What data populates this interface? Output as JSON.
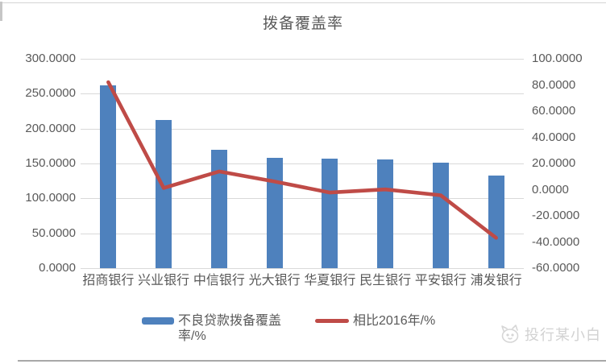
{
  "page": {
    "watermark_text": "投行某小白"
  },
  "chart_data": {
    "type": "bar",
    "subtype": "bar+line combo",
    "title": "拨备覆盖率",
    "categories": [
      "招商银行",
      "兴业银行",
      "中信银行",
      "光大银行",
      "华夏银行",
      "民生银行",
      "平安银行",
      "浦发银行"
    ],
    "series": [
      {
        "name": "不良贷款拨备覆盖率/%",
        "type": "bar",
        "axis": "left",
        "color": "#4e81bd",
        "values": [
          262.1,
          211.8,
          169.4,
          158.2,
          156.5,
          155.6,
          151.1,
          132.4
        ]
      },
      {
        "name": "相比2016年/%",
        "type": "line",
        "axis": "right",
        "color": "#bf4b47",
        "values": [
          82.1,
          1.3,
          13.9,
          6.2,
          -2.2,
          0.2,
          -4.3,
          -36.8
        ]
      }
    ],
    "left_axis": {
      "min": 0,
      "max": 300,
      "ticks": [
        "300.0000",
        "250.0000",
        "200.0000",
        "150.0000",
        "100.0000",
        "50.0000",
        "0.0000"
      ]
    },
    "right_axis": {
      "min": -60,
      "max": 100,
      "ticks": [
        "100.0000",
        "80.0000",
        "60.0000",
        "40.0000",
        "20.0000",
        "0.0000",
        "-20.0000",
        "-40.0000",
        "-60.0000"
      ]
    },
    "legend_position": "bottom",
    "grid": "horizontal"
  }
}
